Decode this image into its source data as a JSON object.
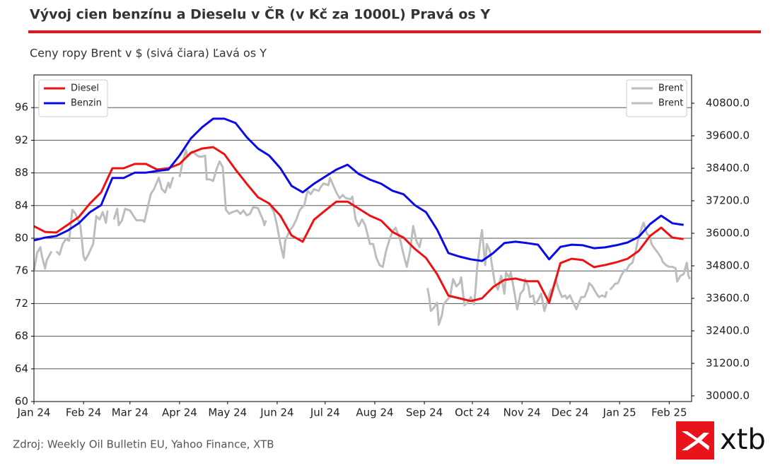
{
  "chart_data": {
    "type": "line",
    "title": "Vývoj cien benzínu a Dieselu v ČR (v Kč za 1000L) Pravá os Y",
    "subtitle": "Ceny ropy Brent v $ (sivá čiara) Ľavá os Y",
    "source": "Zdroj: Weekly Oil Bulletin EU, Yahoo Finance, XTB",
    "logo": "xtb",
    "xlim": [
      0,
      411
    ],
    "xticks": [
      {
        "value": 0,
        "label": "Jan 24"
      },
      {
        "value": 31,
        "label": "Feb 24"
      },
      {
        "value": 60,
        "label": "Mar 24"
      },
      {
        "value": 91,
        "label": "Apr 24"
      },
      {
        "value": 121,
        "label": "May 24"
      },
      {
        "value": 152,
        "label": "Jun 24"
      },
      {
        "value": 182,
        "label": "Jul 24"
      },
      {
        "value": 213,
        "label": "Aug 24"
      },
      {
        "value": 244,
        "label": "Sep 24"
      },
      {
        "value": 274,
        "label": "Oct 24"
      },
      {
        "value": 305,
        "label": "Nov 24"
      },
      {
        "value": 335,
        "label": "Dec 24"
      },
      {
        "value": 366,
        "label": "Jan 25"
      },
      {
        "value": 397,
        "label": "Feb 25"
      }
    ],
    "ylim": [
      60,
      100
    ],
    "yticks": [
      60,
      64,
      68,
      72,
      76,
      80,
      84,
      88,
      92,
      96
    ],
    "y2lim": [
      29790,
      41845
    ],
    "y2ticks": [
      {
        "value": 30000,
        "label": "30000.0"
      },
      {
        "value": 31200,
        "label": "31200.0"
      },
      {
        "value": 32400,
        "label": "32400.0"
      },
      {
        "value": 33600,
        "label": "33600.0"
      },
      {
        "value": 34800,
        "label": "34800.0"
      },
      {
        "value": 36000,
        "label": "36000.0"
      },
      {
        "value": 37200,
        "label": "37200.0"
      },
      {
        "value": 38400,
        "label": "38400.0"
      },
      {
        "value": 39600,
        "label": "39600.0"
      },
      {
        "value": 40800,
        "label": "40800.0"
      }
    ],
    "grid": true,
    "legend": "upper left",
    "legend2": "upper right",
    "series": [
      {
        "name": "Diesel",
        "color": "#ee1111",
        "axis": "y2",
        "x": [
          0,
          7,
          14,
          21,
          28,
          35,
          42,
          49,
          56,
          63,
          70,
          77,
          84,
          91,
          98,
          105,
          112,
          119,
          126,
          133,
          140,
          147,
          154,
          161,
          168,
          175,
          182,
          189,
          196,
          203,
          210,
          217,
          224,
          231,
          238,
          245,
          252,
          259,
          266,
          273,
          280,
          287,
          294,
          301,
          308,
          315,
          322,
          329,
          336,
          343,
          350,
          357,
          364,
          371,
          378,
          385,
          392,
          399,
          406
        ],
        "values": [
          36260,
          36050,
          36030,
          36310,
          36600,
          37100,
          37510,
          38400,
          38400,
          38560,
          38560,
          38350,
          38400,
          38560,
          38970,
          39130,
          39180,
          38920,
          38350,
          37830,
          37330,
          37100,
          36650,
          35920,
          35690,
          36500,
          36840,
          37170,
          37170,
          36910,
          36650,
          36470,
          36050,
          35840,
          35430,
          35090,
          34490,
          33700,
          33600,
          33500,
          33600,
          34020,
          34280,
          34330,
          34230,
          34230,
          33440,
          34900,
          35060,
          35010,
          34750,
          34830,
          34930,
          35060,
          35350,
          35900,
          36210,
          35840,
          35790
        ]
      },
      {
        "name": "Benzin",
        "color": "#0a0ae6",
        "axis": "y2",
        "x": [
          0,
          7,
          14,
          21,
          28,
          35,
          42,
          49,
          56,
          63,
          70,
          77,
          84,
          91,
          98,
          105,
          112,
          119,
          126,
          133,
          140,
          147,
          154,
          161,
          168,
          175,
          182,
          189,
          196,
          203,
          210,
          217,
          224,
          231,
          238,
          245,
          252,
          259,
          266,
          273,
          280,
          287,
          294,
          301,
          308,
          315,
          322,
          329,
          336,
          343,
          350,
          357,
          364,
          371,
          378,
          385,
          392,
          399,
          406
        ],
        "values": [
          35740,
          35840,
          35900,
          36100,
          36370,
          36780,
          37040,
          38040,
          38040,
          38240,
          38240,
          38300,
          38350,
          38870,
          39500,
          39910,
          40230,
          40230,
          40070,
          39550,
          39130,
          38870,
          38400,
          37750,
          37510,
          37830,
          38090,
          38350,
          38530,
          38190,
          37980,
          37830,
          37570,
          37440,
          37040,
          36780,
          36130,
          35270,
          35140,
          35040,
          34980,
          35270,
          35640,
          35690,
          35640,
          35580,
          35040,
          35500,
          35580,
          35560,
          35450,
          35480,
          35560,
          35660,
          35870,
          36340,
          36650,
          36370,
          36310
        ]
      },
      {
        "name": "Brent",
        "color": "#bdbdbd",
        "x": [
          0,
          2,
          4,
          5,
          7,
          8,
          11,
          12,
          14,
          16,
          18,
          20,
          22,
          24,
          26,
          29,
          31,
          32,
          34,
          37,
          39,
          41,
          43,
          45,
          46,
          48,
          50,
          52,
          53,
          55,
          57,
          60,
          62,
          64,
          66,
          68,
          69,
          73,
          75,
          78,
          80,
          82,
          84,
          85,
          87,
          89,
          91,
          93,
          95,
          96,
          99,
          101,
          103,
          105,
          107,
          108,
          110,
          112,
          114,
          116,
          118,
          120,
          122,
          124,
          127,
          129,
          131,
          133,
          135,
          137,
          140,
          141,
          143,
          144,
          145,
          146,
          148,
          150,
          152,
          154,
          156,
          157,
          160,
          162,
          164,
          166,
          169,
          171,
          173,
          175,
          178,
          179,
          181,
          184,
          185,
          187,
          189,
          191,
          193,
          195,
          198,
          199,
          201,
          203,
          205,
          207,
          210,
          212,
          214,
          216,
          218,
          220,
          222,
          224,
          226,
          229,
          231,
          233,
          235,
          237,
          239,
          241,
          242
        ],
        "values": [
          76.0,
          78.2,
          78.9,
          77.8,
          76.3,
          77.3,
          78.4,
          null,
          78.4,
          78.0,
          79.3,
          79.9,
          79.7,
          83.5,
          83.0,
          81.6,
          77.8,
          77.3,
          78.0,
          79.3,
          82.7,
          82.3,
          83.2,
          81.9,
          83.4,
          null,
          82.3,
          83.6,
          81.6,
          82.2,
          83.6,
          83.4,
          82.8,
          82.2,
          82.2,
          82.2,
          82.0,
          85.4,
          86.0,
          87.4,
          86.0,
          85.6,
          86.8,
          86.2,
          87.5,
          null,
          87.5,
          89.4,
          90.8,
          90.0,
          90.6,
          90.3,
          90.0,
          90.0,
          90.1,
          87.2,
          87.2,
          87.0,
          88.4,
          89.4,
          88.7,
          83.5,
          83.0,
          83.2,
          83.4,
          83.0,
          83.4,
          82.8,
          83.0,
          83.8,
          83.7,
          83.2,
          82.3,
          81.6,
          82.2,
          null,
          83.9,
          83.2,
          81.5,
          79.3,
          77.6,
          79.7,
          81.0,
          81.5,
          82.3,
          83.4,
          84.1,
          85.8,
          85.4,
          86.0,
          85.8,
          86.2,
          86.7,
          86.5,
          87.4,
          86.5,
          85.6,
          84.9,
          85.3,
          84.9,
          84.8,
          85.1,
          82.3,
          81.5,
          82.3,
          81.6,
          79.3,
          79.3,
          77.6,
          76.7,
          76.5,
          78.4,
          79.7,
          80.8,
          81.3,
          79.7,
          78.0,
          76.5,
          78.4,
          81.5,
          79.7,
          78.9,
          79.9
        ]
      },
      {
        "name": "Brent",
        "color": "#bdbdbd",
        "x": [
          246,
          247,
          248,
          250,
          252,
          253,
          255,
          256,
          258,
          260,
          262,
          264,
          266,
          267,
          269,
          271,
          273,
          275,
          276,
          277,
          279,
          280,
          282,
          283,
          285,
          286,
          288,
          290,
          292,
          294,
          295,
          297,
          298,
          300,
          302,
          304,
          306,
          307,
          309,
          310,
          312,
          313,
          315,
          317,
          319,
          321,
          323,
          324,
          326,
          328,
          330,
          332,
          333,
          335,
          337,
          339,
          340,
          342,
          344,
          346,
          347,
          349,
          351,
          353,
          355,
          357,
          358,
          359,
          360,
          362,
          363,
          365,
          367,
          369,
          370,
          372,
          374,
          376,
          378,
          379,
          381,
          383,
          385,
          386,
          388,
          390,
          392,
          393,
          395,
          397,
          399,
          401,
          402,
          404,
          406,
          408,
          409,
          410
        ],
        "values": [
          73.9,
          72.8,
          71.1,
          71.5,
          72.1,
          69.4,
          70.6,
          71.9,
          72.4,
          72.8,
          75.0,
          74.1,
          74.5,
          75.2,
          71.8,
          72.1,
          72.8,
          71.9,
          73.7,
          76.5,
          79.7,
          81.0,
          76.7,
          79.3,
          78.4,
          77.0,
          74.5,
          73.7,
          75.4,
          73.2,
          75.8,
          75.2,
          75.8,
          73.7,
          71.3,
          73.2,
          73.7,
          75.0,
          74.1,
          72.8,
          73.0,
          71.9,
          72.4,
          73.2,
          71.1,
          72.4,
          73.7,
          73.7,
          75.0,
          73.7,
          72.8,
          73.0,
          72.6,
          73.0,
          72.1,
          71.3,
          71.8,
          72.8,
          72.8,
          73.7,
          74.5,
          74.1,
          73.4,
          72.8,
          73.0,
          72.8,
          73.5,
          null,
          73.7,
          74.1,
          74.4,
          74.5,
          75.4,
          76.1,
          76.0,
          76.7,
          77.0,
          78.4,
          80.2,
          80.8,
          81.9,
          80.6,
          80.2,
          79.3,
          78.7,
          78.2,
          77.6,
          77.1,
          76.7,
          76.5,
          76.5,
          76.3,
          74.7,
          75.4,
          75.6,
          77.0,
          75.4,
          75.0
        ]
      }
    ]
  }
}
